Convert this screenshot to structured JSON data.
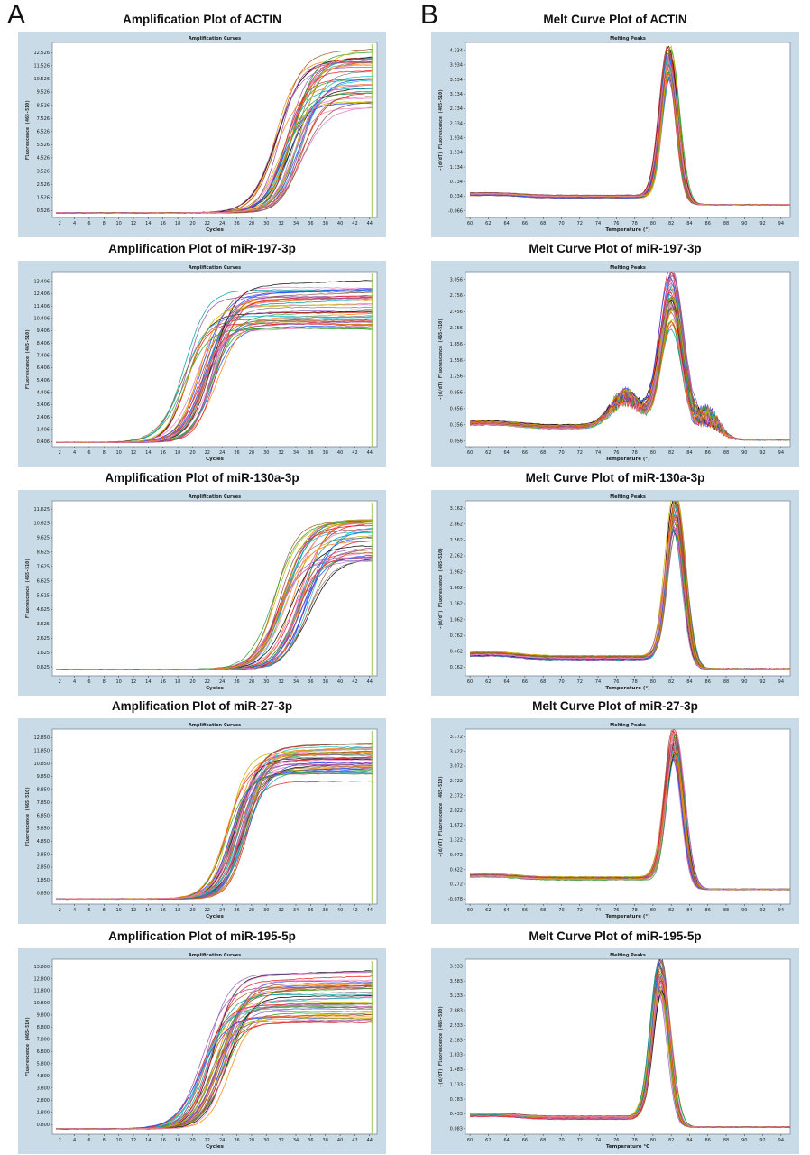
{
  "panel_labels": [
    "A",
    "B"
  ],
  "series_colors": [
    "#e41a1c",
    "#1f4fff",
    "#2ca02c",
    "#984ea3",
    "#ff7f00",
    "#c8b400",
    "#a65628",
    "#f781bf",
    "#17becf",
    "#000000",
    "#7f7f7f",
    "#d62728",
    "#9467bd",
    "#8c564b",
    "#e377c2",
    "#00a0a0"
  ],
  "chart_data": [
    {
      "id": "amp-actin",
      "column": "A",
      "type": "line",
      "title": "Amplification Plot of ACTIN",
      "inner_title": "Amplification Curves",
      "xlabel": "Cycles",
      "ylabel": "Fluorescence (465-510)",
      "x_ticks": [
        "2",
        "4",
        "6",
        "8",
        "10",
        "12",
        "14",
        "16",
        "18",
        "20",
        "22",
        "24",
        "26",
        "28",
        "30",
        "32",
        "34",
        "36",
        "38",
        "40",
        "42",
        "44"
      ],
      "xlim": [
        1,
        45
      ],
      "y_ticks": [
        "0.526",
        "1.526",
        "2.526",
        "3.526",
        "4.526",
        "5.526",
        "6.526",
        "7.526",
        "8.526",
        "9.526",
        "10.526",
        "11.526",
        "12.526"
      ],
      "ylim": [
        0,
        13.3
      ],
      "curve_model": "sigmoid",
      "series_count": 40,
      "baseline": 0.35,
      "plateau_range": [
        8.2,
        12.6
      ],
      "midpoint_range": [
        31.0,
        35.0
      ],
      "slope": 1.5
    },
    {
      "id": "melt-actin",
      "column": "B",
      "type": "line",
      "title": "Melt Curve Plot of ACTIN",
      "inner_title": "Melting Peaks",
      "xlabel": "Temperature (°)",
      "ylabel": "-(d/dT) Fluorescence (465-510)",
      "x_ticks": [
        "60",
        "62",
        "64",
        "66",
        "68",
        "70",
        "72",
        "74",
        "76",
        "78",
        "80",
        "82",
        "84",
        "86",
        "88",
        "90",
        "92",
        "94"
      ],
      "xlim": [
        59.5,
        95
      ],
      "y_ticks": [
        "-0.066",
        "0.334",
        "0.734",
        "1.134",
        "1.534",
        "1.934",
        "2.334",
        "2.734",
        "3.134",
        "3.534",
        "3.934",
        "4.334"
      ],
      "ylim": [
        -0.25,
        4.55
      ],
      "curve_model": "peak",
      "series_count": 40,
      "peak_temp": 81.8,
      "peak_height_range": [
        3.2,
        4.15
      ],
      "peak_width": 0.9,
      "shoulder": null,
      "base_level": 0.38,
      "tail_level": 0.1
    },
    {
      "id": "amp-mir197",
      "column": "A",
      "type": "line",
      "title": "Amplification Plot of miR-197-3p",
      "inner_title": "Amplification Curves",
      "xlabel": "Cycles",
      "ylabel": "Fluorescence (465-510)",
      "x_ticks": [
        "2",
        "4",
        "6",
        "8",
        "10",
        "12",
        "14",
        "16",
        "18",
        "20",
        "22",
        "24",
        "26",
        "28",
        "30",
        "32",
        "34",
        "36",
        "38",
        "40",
        "42",
        "44"
      ],
      "xlim": [
        1,
        45
      ],
      "y_ticks": [
        "0.406",
        "1.406",
        "2.406",
        "3.406",
        "4.406",
        "5.406",
        "6.406",
        "7.406",
        "8.406",
        "9.406",
        "10.406",
        "11.406",
        "12.406",
        "13.406"
      ],
      "ylim": [
        0,
        14.2
      ],
      "curve_model": "sigmoid",
      "series_count": 40,
      "baseline": 0.35,
      "plateau_range": [
        9.3,
        13.2
      ],
      "midpoint_range": [
        18.5,
        23.5
      ],
      "slope": 1.5
    },
    {
      "id": "melt-mir197",
      "column": "B",
      "type": "line",
      "title": "Melt Curve Plot of miR-197-3p",
      "inner_title": "Melting Peaks",
      "xlabel": "Temperature (°)",
      "ylabel": "-(d/dT) Fluorescence (465-510)",
      "x_ticks": [
        "60",
        "62",
        "64",
        "66",
        "68",
        "70",
        "72",
        "74",
        "76",
        "78",
        "80",
        "82",
        "84",
        "86",
        "88",
        "90",
        "92",
        "94"
      ],
      "xlim": [
        59.5,
        95
      ],
      "y_ticks": [
        "0.056",
        "0.356",
        "0.656",
        "0.956",
        "1.256",
        "1.556",
        "1.856",
        "2.156",
        "2.456",
        "2.756",
        "3.056"
      ],
      "ylim": [
        -0.05,
        3.2
      ],
      "curve_model": "peak",
      "series_count": 40,
      "peak_temp": 82.0,
      "peak_height_range": [
        1.8,
        2.95
      ],
      "peak_width": 1.2,
      "shoulder": {
        "temp": 77.0,
        "height": 0.55,
        "width": 1.6
      },
      "shoulder2": {
        "temp": 86.0,
        "height": 0.45,
        "width": 1.2
      },
      "base_level": 0.38,
      "tail_level": 0.08
    },
    {
      "id": "amp-mir130a",
      "column": "A",
      "type": "line",
      "title": "Amplification Plot of miR-130a-3p",
      "inner_title": "Amplification Curves",
      "xlabel": "Cycles",
      "ylabel": "Fluorescence (465-510)",
      "x_ticks": [
        "2",
        "4",
        "6",
        "8",
        "10",
        "12",
        "14",
        "16",
        "18",
        "20",
        "22",
        "24",
        "26",
        "28",
        "30",
        "32",
        "34",
        "36",
        "38",
        "40",
        "42",
        "44"
      ],
      "xlim": [
        1,
        45
      ],
      "y_ticks": [
        "0.625",
        "1.625",
        "2.625",
        "3.625",
        "4.625",
        "5.625",
        "6.625",
        "7.625",
        "8.625",
        "9.625",
        "10.625",
        "11.625"
      ],
      "ylim": [
        0,
        12.2
      ],
      "curve_model": "sigmoid",
      "series_count": 40,
      "baseline": 0.45,
      "plateau_range": [
        8.0,
        11.0
      ],
      "midpoint_range": [
        31.0,
        36.0
      ],
      "slope": 1.6
    },
    {
      "id": "melt-mir130a",
      "column": "B",
      "type": "line",
      "title": "Melt Curve Plot of miR-130a-3p",
      "inner_title": "Melting Peaks",
      "xlabel": "Temperature (°)",
      "ylabel": "-(d/dT) Fluorescence (465-510)",
      "x_ticks": [
        "60",
        "62",
        "64",
        "66",
        "68",
        "70",
        "72",
        "74",
        "76",
        "78",
        "80",
        "82",
        "84",
        "86",
        "88",
        "90",
        "92",
        "94"
      ],
      "xlim": [
        59.5,
        95
      ],
      "y_ticks": [
        "0.162",
        "0.462",
        "0.762",
        "1.062",
        "1.362",
        "1.662",
        "1.962",
        "2.262",
        "2.562",
        "2.862",
        "3.162"
      ],
      "ylim": [
        0.0,
        3.3
      ],
      "curve_model": "peak",
      "series_count": 40,
      "peak_temp": 82.4,
      "peak_height_range": [
        2.4,
        3.1
      ],
      "peak_width": 0.95,
      "shoulder": null,
      "base_level": 0.4,
      "tail_level": 0.13
    },
    {
      "id": "amp-mir27",
      "column": "A",
      "type": "line",
      "title": "Amplification Plot of miR-27-3p",
      "inner_title": "Amplification Curves",
      "xlabel": "Cycles",
      "ylabel": "Fluorescence (465-510)",
      "x_ticks": [
        "2",
        "4",
        "6",
        "8",
        "10",
        "12",
        "14",
        "16",
        "18",
        "20",
        "22",
        "24",
        "26",
        "28",
        "30",
        "32",
        "34",
        "36",
        "38",
        "40",
        "42",
        "44"
      ],
      "xlim": [
        1,
        45
      ],
      "y_ticks": [
        "0.850",
        "1.850",
        "2.850",
        "3.850",
        "4.850",
        "5.850",
        "6.850",
        "7.850",
        "8.850",
        "9.850",
        "10.850",
        "11.850",
        "12.850"
      ],
      "ylim": [
        0,
        13.5
      ],
      "curve_model": "sigmoid",
      "series_count": 40,
      "baseline": 0.4,
      "plateau_range": [
        9.3,
        12.5
      ],
      "midpoint_range": [
        24.5,
        27.5
      ],
      "slope": 1.4
    },
    {
      "id": "melt-mir27",
      "column": "B",
      "type": "line",
      "title": "Melt Curve Plot of miR-27-3p",
      "inner_title": "Melting Peaks",
      "xlabel": "Temperature (°)",
      "ylabel": "-(d/dT) Fluorescence (465-510)",
      "x_ticks": [
        "60",
        "62",
        "64",
        "66",
        "68",
        "70",
        "72",
        "74",
        "76",
        "78",
        "80",
        "82",
        "84",
        "86",
        "88",
        "90",
        "92",
        "94"
      ],
      "xlim": [
        59.5,
        95
      ],
      "y_ticks": [
        "-0.078",
        "0.272",
        "0.622",
        "0.972",
        "1.322",
        "1.672",
        "2.022",
        "2.372",
        "2.722",
        "3.072",
        "3.422",
        "3.772"
      ],
      "ylim": [
        -0.2,
        3.95
      ],
      "curve_model": "peak",
      "series_count": 40,
      "peak_temp": 82.3,
      "peak_height_range": [
        2.8,
        3.6
      ],
      "peak_width": 0.95,
      "shoulder": null,
      "base_level": 0.47,
      "tail_level": 0.15
    },
    {
      "id": "amp-mir195",
      "column": "A",
      "type": "line",
      "title": "Amplification Plot of miR-195-5p",
      "inner_title": "Amplification Curves",
      "xlabel": "Cycles",
      "ylabel": "Fluorescence (465-510)",
      "x_ticks": [
        "2",
        "4",
        "6",
        "8",
        "10",
        "12",
        "14",
        "16",
        "18",
        "20",
        "22",
        "24",
        "26",
        "28",
        "30",
        "32",
        "34",
        "36",
        "38",
        "40",
        "42",
        "44"
      ],
      "xlim": [
        1,
        45
      ],
      "y_ticks": [
        "0.800",
        "1.800",
        "2.800",
        "3.800",
        "4.800",
        "5.800",
        "6.800",
        "7.800",
        "8.800",
        "9.800",
        "10.800",
        "11.800",
        "12.800",
        "13.800"
      ],
      "ylim": [
        0,
        14.4
      ],
      "curve_model": "sigmoid",
      "series_count": 40,
      "baseline": 0.45,
      "plateau_range": [
        8.8,
        13.2
      ],
      "midpoint_range": [
        21.0,
        25.0
      ],
      "slope": 1.6
    },
    {
      "id": "melt-mir195",
      "column": "B",
      "type": "line",
      "title": "Melt Curve Plot of miR-195-5p",
      "inner_title": "Melting Peaks",
      "xlabel": "Temperature °C",
      "ylabel": "-(d/dT) Fluorescence (465-510)",
      "x_ticks": [
        "60",
        "62",
        "64",
        "66",
        "68",
        "70",
        "72",
        "74",
        "76",
        "78",
        "80",
        "82",
        "84",
        "86",
        "88",
        "90",
        "92",
        "94"
      ],
      "xlim": [
        59.5,
        95
      ],
      "y_ticks": [
        "0.083",
        "0.433",
        "0.783",
        "1.133",
        "1.483",
        "1.833",
        "2.183",
        "2.533",
        "2.883",
        "3.233",
        "3.583",
        "3.933"
      ],
      "ylim": [
        -0.05,
        4.1
      ],
      "curve_model": "peak",
      "series_count": 40,
      "peak_temp": 80.8,
      "peak_height_range": [
        2.9,
        3.8
      ],
      "peak_width": 0.95,
      "shoulder": null,
      "base_level": 0.4,
      "tail_level": 0.12
    }
  ]
}
